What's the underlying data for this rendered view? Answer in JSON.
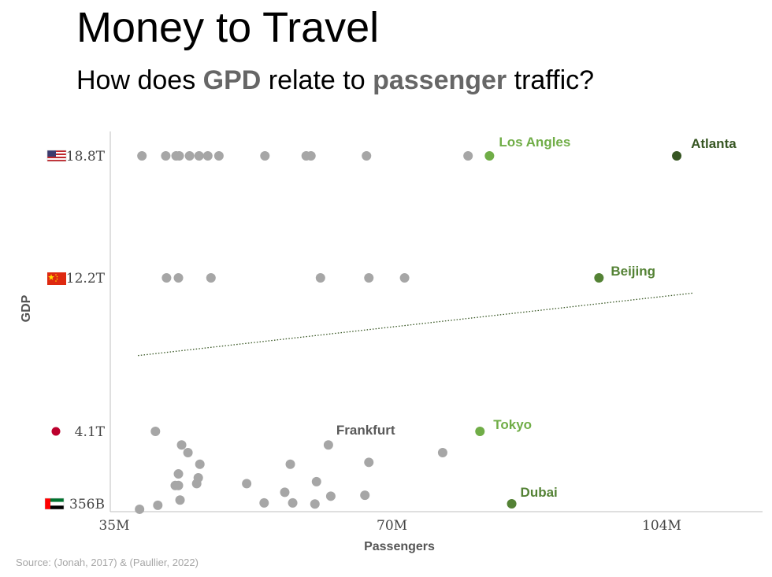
{
  "title": "Money to Travel",
  "subtitle": {
    "part1": "How does ",
    "em1": "GPD",
    "part2": " relate to ",
    "em2": "passenger",
    "part3": " traffic?"
  },
  "source": "Source: (Jonah, 2017) & (Paullier, 2022)",
  "colors": {
    "dot": "#a6a6a6",
    "light_green": "#70ad47",
    "mid_green": "#548235",
    "dark_green": "#375623",
    "frankfurt": "#595959",
    "trendline": "#375623"
  },
  "chart_data": {
    "type": "scatter",
    "xlabel": "Passengers",
    "ylabel": "GDP",
    "x_ticks": [
      "35M",
      "70M",
      "104M"
    ],
    "x_tick_values": [
      35,
      70,
      104
    ],
    "xlim": [
      35,
      115
    ],
    "y_ticks": [
      {
        "label": "18.8T",
        "value": 18.8,
        "flag": "us-flag-icon"
      },
      {
        "label": "12.2T",
        "value": 12.2,
        "flag": "china-flag-icon"
      },
      {
        "label": "4.1T",
        "value": 4.1,
        "flag": "japan-flag-icon"
      },
      {
        "label": "356B",
        "value": 0.356,
        "flag": "uae-flag-icon"
      }
    ],
    "units": {
      "x": "million passengers",
      "y": "trillion USD"
    },
    "grid": false,
    "trendline": {
      "style": "dotted",
      "x": [
        37,
        107
      ],
      "y": [
        8.1,
        11.4
      ]
    },
    "points": [
      {
        "x": 37.5,
        "y": 18.8
      },
      {
        "x": 40.5,
        "y": 18.8
      },
      {
        "x": 41.8,
        "y": 18.8
      },
      {
        "x": 42.2,
        "y": 18.8
      },
      {
        "x": 43.5,
        "y": 18.8
      },
      {
        "x": 44.7,
        "y": 18.8
      },
      {
        "x": 45.8,
        "y": 18.8
      },
      {
        "x": 47.2,
        "y": 18.8
      },
      {
        "x": 53,
        "y": 18.8
      },
      {
        "x": 58.2,
        "y": 18.8
      },
      {
        "x": 58.8,
        "y": 18.8
      },
      {
        "x": 65.8,
        "y": 18.8
      },
      {
        "x": 78.6,
        "y": 18.8
      },
      {
        "x": 81.3,
        "y": 18.8,
        "label": "Los Angles",
        "color": "light_green"
      },
      {
        "x": 104.9,
        "y": 18.8,
        "label": "Atlanta",
        "color": "dark_green"
      },
      {
        "x": 40.6,
        "y": 12.2
      },
      {
        "x": 42.1,
        "y": 12.2
      },
      {
        "x": 46.2,
        "y": 12.2
      },
      {
        "x": 60,
        "y": 12.2
      },
      {
        "x": 66.1,
        "y": 12.2
      },
      {
        "x": 70.6,
        "y": 12.2
      },
      {
        "x": 95.1,
        "y": 12.2,
        "label": "Beijing",
        "color": "mid_green"
      },
      {
        "x": 39.2,
        "y": 4.1
      },
      {
        "x": 80.1,
        "y": 4.1,
        "label": "Tokyo",
        "color": "light_green"
      },
      {
        "x": 61,
        "y": 3.4,
        "label": "Frankfurt",
        "color": "frankfurt"
      },
      {
        "x": 42.5,
        "y": 3.4
      },
      {
        "x": 43.3,
        "y": 3.0
      },
      {
        "x": 75.4,
        "y": 3.0
      },
      {
        "x": 44.8,
        "y": 2.4
      },
      {
        "x": 56.2,
        "y": 2.4
      },
      {
        "x": 66.1,
        "y": 2.5
      },
      {
        "x": 42.1,
        "y": 1.9
      },
      {
        "x": 44.6,
        "y": 1.7
      },
      {
        "x": 59.5,
        "y": 1.5
      },
      {
        "x": 41.7,
        "y": 1.3
      },
      {
        "x": 42.1,
        "y": 1.3
      },
      {
        "x": 44.4,
        "y": 1.4
      },
      {
        "x": 50.7,
        "y": 1.4
      },
      {
        "x": 55.5,
        "y": 0.95
      },
      {
        "x": 61.3,
        "y": 0.75
      },
      {
        "x": 65.6,
        "y": 0.8
      },
      {
        "x": 42.3,
        "y": 0.55
      },
      {
        "x": 52.9,
        "y": 0.4
      },
      {
        "x": 56.5,
        "y": 0.4
      },
      {
        "x": 59.3,
        "y": 0.35
      },
      {
        "x": 37.2,
        "y": 0.15
      },
      {
        "x": 39.5,
        "y": 0.3
      },
      {
        "x": 84.1,
        "y": 0.356,
        "label": "Dubai",
        "color": "mid_green"
      }
    ]
  }
}
